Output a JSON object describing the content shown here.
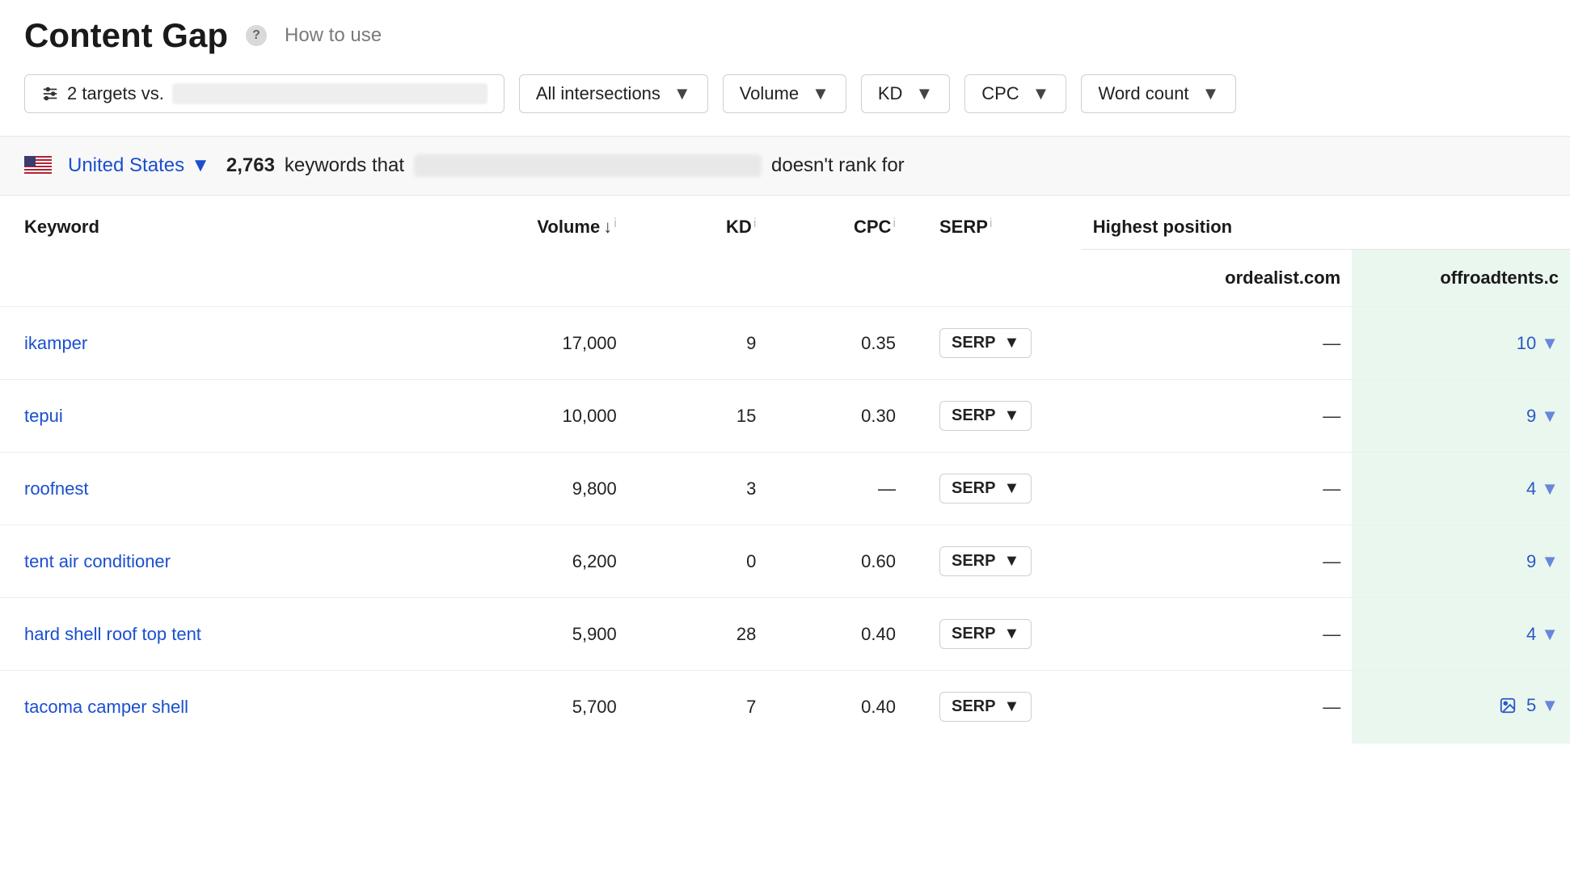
{
  "header": {
    "title": "Content Gap",
    "help_glyph": "?",
    "how_to_use": "How to use"
  },
  "filters": {
    "targets_prefix": "2 targets vs.",
    "intersections": "All intersections",
    "volume": "Volume",
    "kd": "KD",
    "cpc": "CPC",
    "word_count": "Word count"
  },
  "summary": {
    "country": "United States",
    "keywords_count": "2,763",
    "text_prefix": "keywords that",
    "text_suffix": "doesn't rank for"
  },
  "table": {
    "columns": {
      "keyword": "Keyword",
      "volume": "Volume",
      "kd": "KD",
      "cpc": "CPC",
      "serp": "SERP",
      "highest": "Highest position",
      "pos_a": "ordealist.com",
      "pos_b": "offroadtents.c"
    },
    "serp_button": "SERP",
    "rows": [
      {
        "keyword": "ikamper",
        "volume": "17,000",
        "kd": "9",
        "cpc": "0.35",
        "pos_a": "—",
        "pos_b": "10",
        "has_image_icon": false
      },
      {
        "keyword": "tepui",
        "volume": "10,000",
        "kd": "15",
        "cpc": "0.30",
        "pos_a": "—",
        "pos_b": "9",
        "has_image_icon": false
      },
      {
        "keyword": "roofnest",
        "volume": "9,800",
        "kd": "3",
        "cpc": "—",
        "pos_a": "—",
        "pos_b": "4",
        "has_image_icon": false
      },
      {
        "keyword": "tent air conditioner",
        "volume": "6,200",
        "kd": "0",
        "cpc": "0.60",
        "pos_a": "—",
        "pos_b": "9",
        "has_image_icon": false
      },
      {
        "keyword": "hard shell roof top tent",
        "volume": "5,900",
        "kd": "28",
        "cpc": "0.40",
        "pos_a": "—",
        "pos_b": "4",
        "has_image_icon": false
      },
      {
        "keyword": "tacoma camper shell",
        "volume": "5,700",
        "kd": "7",
        "cpc": "0.40",
        "pos_a": "—",
        "pos_b": "5",
        "has_image_icon": true
      }
    ]
  },
  "colors": {
    "link": "#1a4fcf",
    "highlight_bg": "#eaf7ef",
    "border": "#e5e5e5",
    "summary_bg": "#f8f8f8",
    "text": "#1a1a1a"
  }
}
